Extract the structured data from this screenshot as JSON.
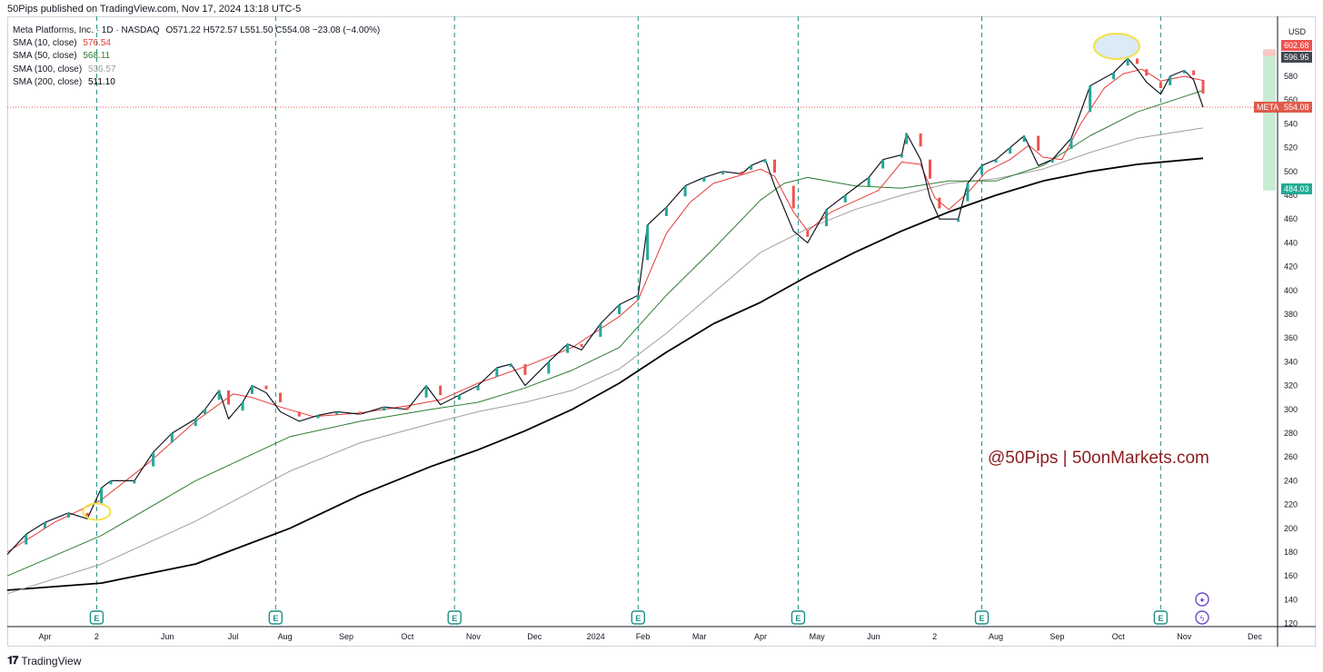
{
  "header": {
    "published": "50Pips published on TradingView.com, Nov 17, 2024 13:18 UTC-5"
  },
  "legend": {
    "symbol": "Meta Platforms, Inc. · 1D · NASDAQ",
    "ohlc": "O571.22  H572.57  L551.50  C554.08  −23.08 (−4.00%)",
    "sma": [
      {
        "label": "SMA (10, close)",
        "value": "576.54",
        "color": "#e53935"
      },
      {
        "label": "SMA (50, close)",
        "value": "568.11",
        "color": "#2e7d32"
      },
      {
        "label": "SMA (100, close)",
        "value": "536.57",
        "color": "#9e9e9e"
      },
      {
        "label": "SMA (200, close)",
        "value": "511.10",
        "color": "#000000"
      }
    ]
  },
  "price_scale": {
    "currency": "USD"
  },
  "tags": {
    "meta_symbol": "META",
    "meta_price": "554.08",
    "top_red": "602.68",
    "top_dark": "596.95",
    "bottom_green": "484.03"
  },
  "watermark": "@50Pips | 50onMarkets.com",
  "footer": {
    "brand": "TradingView"
  },
  "colors": {
    "up": "#26a69a",
    "down": "#ef5350",
    "earnings": "#1e8f86",
    "accent_green": "#22ab94"
  },
  "chart_data": {
    "type": "line",
    "title": "Meta Platforms, Inc. · 1D · NASDAQ",
    "ylim": [
      110,
      620
    ],
    "y_ticks": [
      120,
      140,
      160,
      180,
      200,
      220,
      240,
      260,
      280,
      300,
      320,
      340,
      360,
      380,
      400,
      420,
      440,
      460,
      480,
      500,
      520,
      540,
      560,
      580
    ],
    "x_ticks": [
      "Apr",
      "2",
      "Jun",
      "Jul",
      "Aug",
      "Sep",
      "Oct",
      "Nov",
      "Dec",
      "2024",
      "Feb",
      "Mar",
      "Apr",
      "May",
      "Jun",
      "2",
      "Aug",
      "Sep",
      "Oct",
      "Nov",
      "Dec"
    ],
    "last_close": 554.08,
    "earnings_markers": [
      "Apr 2023",
      "Jul 2023",
      "Oct 2023",
      "Feb 2024",
      "Apr 2024",
      "Jul 2024",
      "Oct 2024"
    ],
    "series": [
      {
        "name": "Price (close)",
        "points": [
          [
            0,
            178
          ],
          [
            4,
            195
          ],
          [
            8,
            205
          ],
          [
            13,
            213
          ],
          [
            17,
            208
          ],
          [
            20,
            234
          ],
          [
            22,
            240
          ],
          [
            27,
            240
          ],
          [
            31,
            264
          ],
          [
            35,
            280
          ],
          [
            40,
            292
          ],
          [
            42,
            300
          ],
          [
            45,
            316
          ],
          [
            47,
            292
          ],
          [
            50,
            306
          ],
          [
            52,
            320
          ],
          [
            55,
            314
          ],
          [
            58,
            298
          ],
          [
            62,
            290
          ],
          [
            66,
            295
          ],
          [
            70,
            298
          ],
          [
            75,
            296
          ],
          [
            80,
            302
          ],
          [
            85,
            300
          ],
          [
            89,
            320
          ],
          [
            92,
            304
          ],
          [
            96,
            312
          ],
          [
            100,
            320
          ],
          [
            104,
            335
          ],
          [
            107,
            338
          ],
          [
            110,
            320
          ],
          [
            115,
            340
          ],
          [
            119,
            355
          ],
          [
            122,
            350
          ],
          [
            126,
            372
          ],
          [
            130,
            388
          ],
          [
            134,
            396
          ],
          [
            136,
            455
          ],
          [
            140,
            470
          ],
          [
            144,
            488
          ],
          [
            148,
            495
          ],
          [
            152,
            500
          ],
          [
            156,
            498
          ],
          [
            158,
            505
          ],
          [
            161,
            510
          ],
          [
            163,
            488
          ],
          [
            167,
            450
          ],
          [
            170,
            440
          ],
          [
            174,
            468
          ],
          [
            178,
            480
          ],
          [
            183,
            495
          ],
          [
            186,
            510
          ],
          [
            190,
            514
          ],
          [
            191,
            532
          ],
          [
            194,
            510
          ],
          [
            196,
            478
          ],
          [
            198,
            460
          ],
          [
            202,
            460
          ],
          [
            204,
            490
          ],
          [
            207,
            505
          ],
          [
            210,
            510
          ],
          [
            213,
            520
          ],
          [
            216,
            530
          ],
          [
            219,
            505
          ],
          [
            222,
            510
          ],
          [
            226,
            528
          ],
          [
            230,
            572
          ],
          [
            235,
            583
          ],
          [
            238,
            595
          ],
          [
            240,
            586
          ],
          [
            242,
            575
          ],
          [
            245,
            565
          ],
          [
            247,
            580
          ],
          [
            250,
            585
          ],
          [
            252,
            577
          ],
          [
            254,
            554.08
          ]
        ]
      },
      {
        "name": "SMA (10, close)",
        "points": [
          [
            0,
            180
          ],
          [
            10,
            205
          ],
          [
            20,
            224
          ],
          [
            30,
            255
          ],
          [
            40,
            290
          ],
          [
            48,
            313
          ],
          [
            52,
            310
          ],
          [
            58,
            302
          ],
          [
            65,
            294
          ],
          [
            75,
            297
          ],
          [
            85,
            303
          ],
          [
            92,
            308
          ],
          [
            100,
            322
          ],
          [
            110,
            336
          ],
          [
            120,
            352
          ],
          [
            130,
            378
          ],
          [
            134,
            392
          ],
          [
            137,
            420
          ],
          [
            140,
            448
          ],
          [
            145,
            474
          ],
          [
            150,
            490
          ],
          [
            155,
            496
          ],
          [
            160,
            502
          ],
          [
            163,
            496
          ],
          [
            167,
            466
          ],
          [
            170,
            450
          ],
          [
            175,
            466
          ],
          [
            180,
            475
          ],
          [
            185,
            484
          ],
          [
            190,
            508
          ],
          [
            194,
            506
          ],
          [
            197,
            478
          ],
          [
            200,
            468
          ],
          [
            204,
            482
          ],
          [
            208,
            500
          ],
          [
            213,
            510
          ],
          [
            217,
            522
          ],
          [
            220,
            512
          ],
          [
            224,
            510
          ],
          [
            228,
            540
          ],
          [
            233,
            570
          ],
          [
            237,
            582
          ],
          [
            241,
            586
          ],
          [
            245,
            576
          ],
          [
            250,
            580
          ],
          [
            254,
            576.54
          ]
        ]
      },
      {
        "name": "SMA (50, close)",
        "points": [
          [
            0,
            160
          ],
          [
            20,
            194
          ],
          [
            40,
            240
          ],
          [
            60,
            277
          ],
          [
            75,
            290
          ],
          [
            90,
            300
          ],
          [
            100,
            306
          ],
          [
            110,
            318
          ],
          [
            120,
            333
          ],
          [
            130,
            352
          ],
          [
            140,
            396
          ],
          [
            150,
            435
          ],
          [
            160,
            476
          ],
          [
            165,
            490
          ],
          [
            170,
            495
          ],
          [
            180,
            488
          ],
          [
            190,
            486
          ],
          [
            200,
            492
          ],
          [
            210,
            492
          ],
          [
            220,
            505
          ],
          [
            230,
            530
          ],
          [
            240,
            550
          ],
          [
            250,
            563
          ],
          [
            254,
            568.11
          ]
        ]
      },
      {
        "name": "SMA (100, close)",
        "points": [
          [
            0,
            145
          ],
          [
            20,
            170
          ],
          [
            40,
            206
          ],
          [
            60,
            248
          ],
          [
            75,
            272
          ],
          [
            90,
            288
          ],
          [
            100,
            298
          ],
          [
            110,
            306
          ],
          [
            120,
            316
          ],
          [
            130,
            334
          ],
          [
            140,
            364
          ],
          [
            150,
            398
          ],
          [
            160,
            432
          ],
          [
            170,
            452
          ],
          [
            180,
            468
          ],
          [
            190,
            480
          ],
          [
            200,
            490
          ],
          [
            210,
            494
          ],
          [
            220,
            502
          ],
          [
            230,
            516
          ],
          [
            240,
            528
          ],
          [
            254,
            536.57
          ]
        ]
      },
      {
        "name": "SMA (200, close)",
        "points": [
          [
            0,
            148
          ],
          [
            20,
            154
          ],
          [
            40,
            170
          ],
          [
            60,
            200
          ],
          [
            75,
            228
          ],
          [
            90,
            252
          ],
          [
            100,
            266
          ],
          [
            110,
            282
          ],
          [
            120,
            300
          ],
          [
            130,
            322
          ],
          [
            140,
            348
          ],
          [
            150,
            372
          ],
          [
            160,
            390
          ],
          [
            170,
            412
          ],
          [
            180,
            432
          ],
          [
            190,
            450
          ],
          [
            200,
            466
          ],
          [
            210,
            480
          ],
          [
            220,
            492
          ],
          [
            230,
            500
          ],
          [
            240,
            506
          ],
          [
            254,
            511.1
          ]
        ]
      }
    ]
  }
}
